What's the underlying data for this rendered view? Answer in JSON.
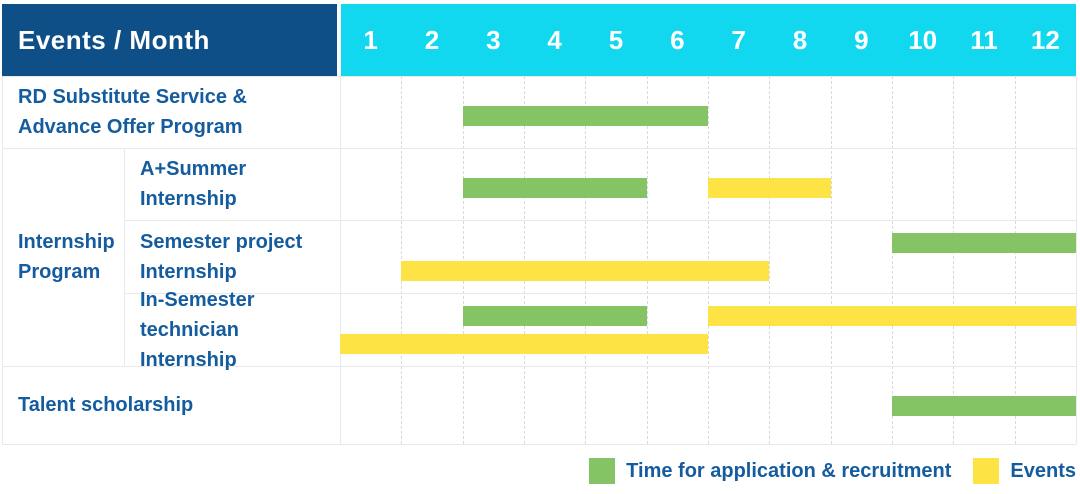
{
  "header": {
    "corner_label": "Events / Month"
  },
  "months": [
    "1",
    "2",
    "3",
    "4",
    "5",
    "6",
    "7",
    "8",
    "9",
    "10",
    "11",
    "12"
  ],
  "legend": {
    "items": [
      {
        "key": "application",
        "label": "Time for application & recruitment",
        "color": "#84c464"
      },
      {
        "key": "event",
        "label": "Events",
        "color": "#fde343"
      }
    ]
  },
  "colors": {
    "header_bg": "#0d4f86",
    "months_bg": "#11d8ee",
    "header_text": "#ffffff",
    "label_text": "#155c9e",
    "application_bar": "#84c464",
    "event_bar": "#fde343",
    "grid_solid": "#e9e9e9",
    "grid_dashed": "#d9d9d9"
  },
  "chart_data": {
    "type": "bar",
    "variant": "gantt-timeline",
    "x_label": "Month",
    "x_ticks": [
      "1",
      "2",
      "3",
      "4",
      "5",
      "6",
      "7",
      "8",
      "9",
      "10",
      "11",
      "12"
    ],
    "grid": "dashed-monthly",
    "legend_position": "bottom-right",
    "series": [
      {
        "key": "application",
        "name": "Time for application & recruitment",
        "color": "#84c464"
      },
      {
        "key": "event",
        "name": "Events",
        "color": "#fde343"
      }
    ],
    "group_labels": [
      {
        "label_lines": [
          "Internship",
          "Program"
        ],
        "rows": [
          1,
          2,
          3
        ]
      }
    ],
    "rows": [
      {
        "label_lines": [
          "RD Substitute Service &",
          "Advance Offer Program"
        ],
        "group": null,
        "bars": [
          {
            "series": "application",
            "start_month": 3,
            "end_month": 6,
            "lane": "center"
          }
        ]
      },
      {
        "label_lines": [
          "A+Summer",
          "Internship"
        ],
        "group": "Internship Program",
        "bars": [
          {
            "series": "application",
            "start_month": 3,
            "end_month": 5,
            "lane": "center"
          },
          {
            "series": "event",
            "start_month": 7,
            "end_month": 8,
            "lane": "center"
          }
        ]
      },
      {
        "label_lines": [
          "Semester project",
          "Internship"
        ],
        "group": "Internship Program",
        "bars": [
          {
            "series": "application",
            "start_month": 10,
            "end_month": 12,
            "lane": "top"
          },
          {
            "series": "event",
            "start_month": 2,
            "end_month": 7,
            "lane": "bottom"
          }
        ]
      },
      {
        "label_lines": [
          "In-Semester",
          "technician Internship"
        ],
        "group": "Internship Program",
        "bars": [
          {
            "series": "application",
            "start_month": 3,
            "end_month": 5,
            "lane": "top"
          },
          {
            "series": "event",
            "start_month": 7,
            "end_month": 12,
            "lane": "top"
          },
          {
            "series": "event",
            "start_month": 1,
            "end_month": 6,
            "lane": "bottom"
          }
        ]
      },
      {
        "label_lines": [
          "Talent scholarship"
        ],
        "group": null,
        "bars": [
          {
            "series": "application",
            "start_month": 10,
            "end_month": 12,
            "lane": "center"
          }
        ]
      }
    ]
  }
}
